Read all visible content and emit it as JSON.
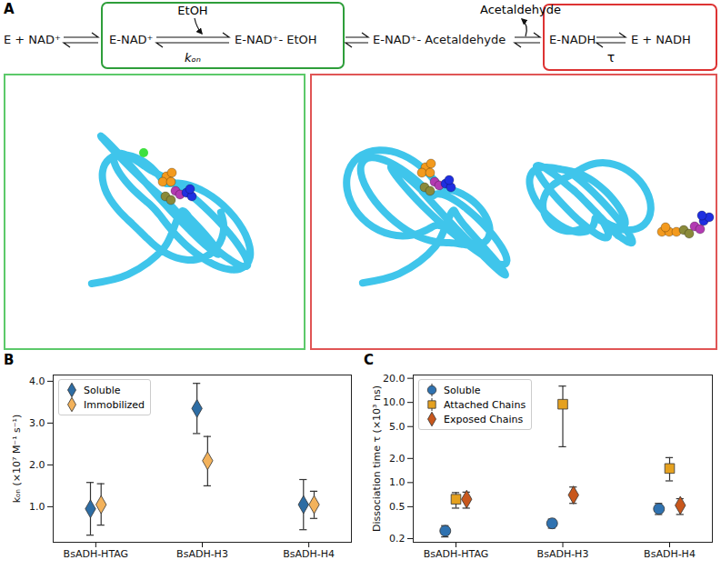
{
  "scheme": {
    "label": "A",
    "species": [
      "E + NAD⁺",
      "E-NAD⁺",
      "E-NAD⁺- EtOH",
      "E-NAD⁺- Acetaldehyde",
      "E-NADH",
      "E + NADH"
    ],
    "substrate": "EtOH",
    "product": "Acetaldehyde",
    "binding_rate": "kₒₙ",
    "dissociation_time": "τ"
  },
  "chart_data": [
    {
      "panel": "B",
      "type": "scatter",
      "categories": [
        "BsADH-HTAG",
        "BsADH-H3",
        "BsADH-H4"
      ],
      "ylabel": "kₒₙ (×10⁷ M⁻¹ s⁻¹)",
      "ylim": [
        0.15,
        4.15
      ],
      "yticks": [
        {
          "value": 1,
          "label": "1.0"
        },
        {
          "value": 2,
          "label": "2.0"
        },
        {
          "value": 3,
          "label": "3.0"
        },
        {
          "value": 4,
          "label": "4.0"
        }
      ],
      "grid": false,
      "legend": "upper left",
      "series": [
        {
          "name": "Soluble",
          "color": "#2e6da4",
          "marker": "diamond",
          "values": [
            0.95,
            3.35,
            1.05
          ],
          "lower": [
            0.32,
            2.75,
            0.45
          ],
          "upper": [
            1.58,
            3.95,
            1.65
          ]
        },
        {
          "name": "Immobilized",
          "color": "#f3b25b",
          "marker": "diamond",
          "values": [
            1.05,
            2.1,
            1.05
          ],
          "lower": [
            0.56,
            1.5,
            0.72
          ],
          "upper": [
            1.55,
            2.68,
            1.37
          ]
        }
      ]
    },
    {
      "panel": "C",
      "type": "scatter",
      "categories": [
        "BsADH-HTAG",
        "BsADH-H3",
        "BsADH-H4"
      ],
      "ylabel": "Dissociation time τ (×10³ ns)",
      "log": "y",
      "ylim": [
        0.18,
        22
      ],
      "yticks": [
        0.2,
        0.5,
        {
          "value": 1,
          "label": "1.0"
        },
        {
          "value": 2,
          "label": "2.0"
        },
        {
          "value": 5,
          "label": "5.0"
        },
        {
          "value": 10,
          "label": "10.0"
        },
        {
          "value": 20,
          "label": "20.0"
        }
      ],
      "grid": false,
      "legend": "upper left",
      "series": [
        {
          "name": "Soluble",
          "color": "#2f72b0",
          "marker": "circle",
          "values": [
            0.25,
            0.31,
            0.47
          ],
          "lower": [
            0.21,
            0.27,
            0.4
          ],
          "upper": [
            0.29,
            0.35,
            0.55
          ]
        },
        {
          "name": "Attached Chains",
          "color": "#e5a11f",
          "marker": "square",
          "values": [
            0.62,
            9.5,
            1.5
          ],
          "lower": [
            0.48,
            2.8,
            1.05
          ],
          "upper": [
            0.75,
            16,
            2.05
          ]
        },
        {
          "name": "Exposed Chains",
          "color": "#c8571c",
          "marker": "diamond",
          "values": [
            0.62,
            0.7,
            0.52
          ],
          "lower": [
            0.48,
            0.55,
            0.4
          ],
          "upper": [
            0.76,
            0.88,
            0.63
          ]
        }
      ]
    }
  ]
}
